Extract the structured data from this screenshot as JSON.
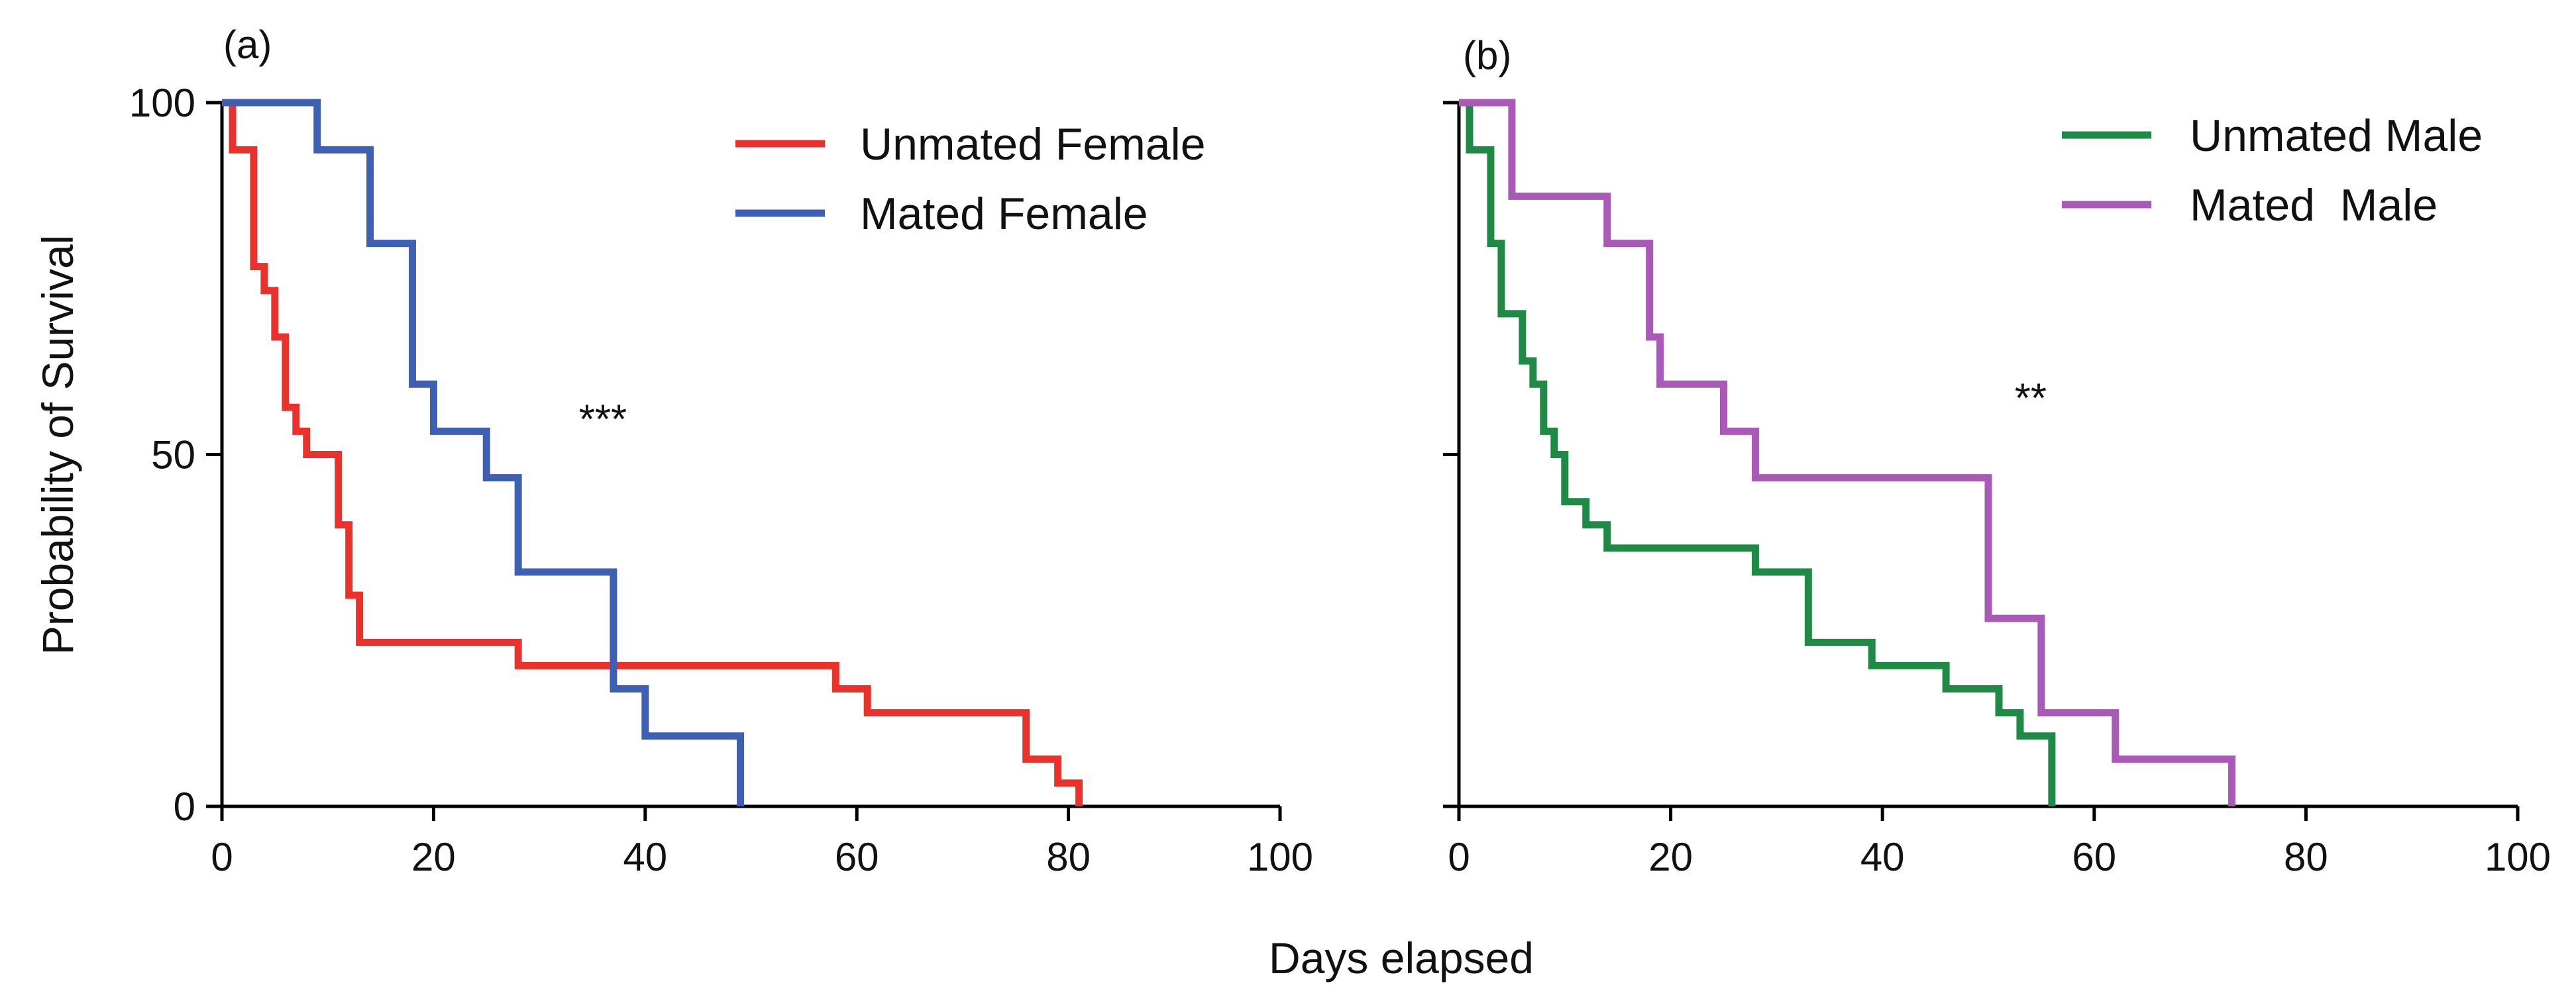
{
  "chart_data": [
    {
      "type": "line",
      "subtype": "kaplan-meier-step",
      "panel_label": "(a)",
      "xlabel": "Days elapsed",
      "ylabel": "Probability of Survival",
      "xlim": [
        0,
        100
      ],
      "ylim": [
        0,
        100
      ],
      "x_ticks": [
        0,
        20,
        40,
        60,
        80,
        100
      ],
      "y_ticks": [
        0,
        50,
        100
      ],
      "legend_position": "top-right",
      "annotation": "***",
      "annotation_position": [
        36,
        53
      ],
      "series": [
        {
          "name": "Unmated Female",
          "color": "#e8322b",
          "x": [
            0,
            1,
            3,
            4,
            5,
            6,
            7,
            8,
            11,
            12,
            13,
            28,
            58,
            61,
            76,
            79,
            81
          ],
          "y": [
            100,
            93.3,
            76.7,
            73.3,
            66.7,
            56.7,
            53.3,
            50,
            40,
            30,
            23.3,
            20,
            16.7,
            13.3,
            6.7,
            3.3,
            0
          ]
        },
        {
          "name": "Mated Female",
          "color": "#3f5fb3",
          "x": [
            0,
            9,
            14,
            18,
            20,
            25,
            28,
            37,
            40,
            49
          ],
          "y": [
            100,
            93.3,
            80,
            60,
            53.3,
            46.7,
            33.3,
            16.7,
            10,
            0
          ]
        }
      ]
    },
    {
      "type": "line",
      "subtype": "kaplan-meier-step",
      "panel_label": "(b)",
      "xlabel": "Days elapsed",
      "ylabel": "Probability of Survival",
      "xlim": [
        0,
        100
      ],
      "ylim": [
        0,
        100
      ],
      "x_ticks": [
        0,
        20,
        40,
        60,
        80,
        100
      ],
      "y_ticks": [
        0,
        50,
        100
      ],
      "legend_position": "top-right",
      "annotation": "**",
      "annotation_position": [
        54,
        56
      ],
      "series": [
        {
          "name": "Unmated Male",
          "color": "#1e8a46",
          "x": [
            0,
            1,
            3,
            4,
            6,
            7,
            8,
            9,
            10,
            12,
            14,
            28,
            33,
            39,
            46,
            51,
            53,
            56
          ],
          "y": [
            100,
            93.3,
            80,
            70,
            63.3,
            60,
            53.3,
            50,
            43.3,
            40,
            36.7,
            33.3,
            23.3,
            20,
            16.7,
            13.3,
            10,
            0
          ]
        },
        {
          "name": "Mated  Male",
          "color": "#a95ab7",
          "x": [
            0,
            5,
            14,
            18,
            19,
            25,
            28,
            50,
            55,
            62,
            73
          ],
          "y": [
            100,
            86.7,
            80,
            66.7,
            60,
            53.3,
            46.7,
            26.7,
            13.3,
            6.7,
            0
          ]
        }
      ]
    }
  ]
}
